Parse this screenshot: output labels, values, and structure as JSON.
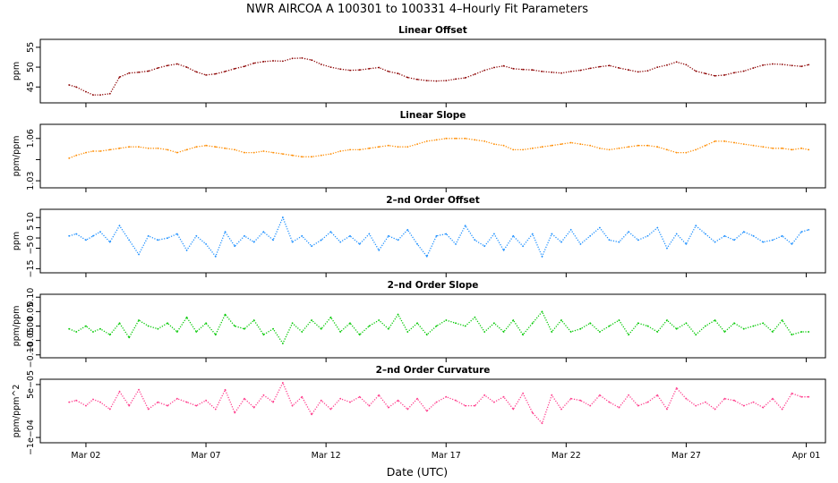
{
  "figure": {
    "title": "NWR   AIRCOA A   100301 to 100331   4–Hourly Fit Parameters",
    "xlabel": "Date (UTC)",
    "xticks": [
      "Mar 02",
      "Mar 07",
      "Mar 12",
      "Mar 17",
      "Mar 22",
      "Mar 27",
      "Apr 01"
    ]
  },
  "chart_data": [
    {
      "type": "line",
      "title": "Linear Offset",
      "ylabel": "ppm",
      "ylim": [
        41,
        57
      ],
      "yticks": [
        45,
        50,
        55
      ],
      "ytick_labels": [
        "45",
        "50",
        "55"
      ],
      "color": "#8b0000",
      "x_unit": "day of March (UTC)",
      "xlim": [
        0.1,
        32.8
      ],
      "series": [
        {
          "x": [
            1.3,
            1.6,
            2.0,
            2.3,
            2.6,
            3.0,
            3.4,
            3.8,
            4.2,
            4.6,
            5.0,
            5.4,
            5.8,
            6.2,
            6.6,
            7.0,
            7.4,
            7.8,
            8.2,
            8.6,
            9.0,
            9.4,
            9.8,
            10.2,
            10.6,
            11.0,
            11.4,
            11.8,
            12.2,
            12.6,
            13.0,
            13.4,
            13.8,
            14.2,
            14.6,
            15.0,
            15.4,
            15.8,
            16.2,
            16.6,
            17.0,
            17.4,
            17.8,
            18.2,
            18.6,
            19.0,
            19.4,
            19.8,
            20.2,
            20.6,
            21.0,
            21.4,
            21.8,
            22.2,
            22.6,
            23.0,
            23.4,
            23.8,
            24.2,
            24.6,
            25.0,
            25.4,
            25.8,
            26.2,
            26.6,
            27.0,
            27.4,
            27.8,
            28.2,
            28.6,
            29.0,
            29.4,
            29.8,
            30.2,
            30.6,
            31.0,
            31.4,
            31.8,
            32.1
          ],
          "values": [
            45.5,
            45.0,
            43.8,
            43.0,
            43.0,
            43.3,
            47.5,
            48.5,
            48.7,
            49.0,
            49.8,
            50.4,
            50.8,
            50.0,
            48.8,
            48.0,
            48.3,
            48.9,
            49.6,
            50.2,
            51.0,
            51.4,
            51.6,
            51.5,
            52.2,
            52.3,
            51.8,
            50.7,
            50.0,
            49.5,
            49.2,
            49.3,
            49.6,
            49.9,
            48.9,
            48.4,
            47.4,
            46.9,
            46.6,
            46.5,
            46.6,
            47.0,
            47.3,
            48.2,
            49.2,
            49.9,
            50.3,
            49.6,
            49.4,
            49.3,
            48.9,
            48.7,
            48.5,
            48.9,
            49.2,
            49.7,
            50.1,
            50.4,
            49.8,
            49.3,
            48.8,
            49.1,
            50.0,
            50.5,
            51.3,
            50.6,
            49.0,
            48.4,
            47.8,
            48.0,
            48.6,
            49.0,
            49.8,
            50.5,
            50.8,
            50.7,
            50.4,
            50.2,
            50.6
          ]
        }
      ]
    },
    {
      "type": "line",
      "title": "Linear Slope",
      "ylabel": "ppm/ppm",
      "ylim": [
        1.025,
        1.07
      ],
      "yticks": [
        1.03,
        1.045,
        1.06
      ],
      "ytick_labels": [
        "1.03",
        "",
        "1.06"
      ],
      "color": "#ff8c00",
      "x_unit": "day of March (UTC)",
      "xlim": [
        0.1,
        32.8
      ],
      "series": [
        {
          "x": [
            1.3,
            1.6,
            2.0,
            2.3,
            2.6,
            3.0,
            3.4,
            3.8,
            4.2,
            4.6,
            5.0,
            5.4,
            5.8,
            6.2,
            6.6,
            7.0,
            7.4,
            7.8,
            8.2,
            8.6,
            9.0,
            9.4,
            9.8,
            10.2,
            10.6,
            11.0,
            11.4,
            11.8,
            12.2,
            12.6,
            13.0,
            13.4,
            13.8,
            14.2,
            14.6,
            15.0,
            15.4,
            15.8,
            16.2,
            16.6,
            17.0,
            17.4,
            17.8,
            18.2,
            18.6,
            19.0,
            19.4,
            19.8,
            20.2,
            20.6,
            21.0,
            21.4,
            21.8,
            22.2,
            22.6,
            23.0,
            23.4,
            23.8,
            24.2,
            24.6,
            25.0,
            25.4,
            25.8,
            26.2,
            26.6,
            27.0,
            27.4,
            27.8,
            28.2,
            28.6,
            29.0,
            29.4,
            29.8,
            30.2,
            30.6,
            31.0,
            31.4,
            31.8,
            32.1
          ],
          "values": [
            1.046,
            1.048,
            1.05,
            1.051,
            1.051,
            1.052,
            1.053,
            1.054,
            1.054,
            1.053,
            1.053,
            1.052,
            1.05,
            1.052,
            1.054,
            1.055,
            1.054,
            1.053,
            1.052,
            1.05,
            1.05,
            1.051,
            1.05,
            1.049,
            1.048,
            1.047,
            1.047,
            1.048,
            1.049,
            1.051,
            1.052,
            1.052,
            1.053,
            1.054,
            1.055,
            1.054,
            1.054,
            1.056,
            1.058,
            1.059,
            1.06,
            1.06,
            1.06,
            1.059,
            1.058,
            1.056,
            1.055,
            1.052,
            1.052,
            1.053,
            1.054,
            1.055,
            1.056,
            1.057,
            1.056,
            1.055,
            1.053,
            1.052,
            1.053,
            1.054,
            1.055,
            1.055,
            1.054,
            1.052,
            1.05,
            1.05,
            1.052,
            1.055,
            1.058,
            1.058,
            1.057,
            1.056,
            1.055,
            1.054,
            1.053,
            1.053,
            1.052,
            1.053,
            1.052
          ]
        }
      ]
    },
    {
      "type": "line",
      "title": "2–nd Order Offset",
      "ylabel": "ppm",
      "ylim": [
        -17,
        14
      ],
      "yticks": [
        -15,
        -5,
        0,
        5,
        10
      ],
      "ytick_labels": [
        "−15",
        "−5",
        "0",
        "5",
        "10"
      ],
      "color": "#1e90ff",
      "x_unit": "day of March (UTC)",
      "xlim": [
        0.1,
        32.8
      ],
      "series": [
        {
          "x": [
            1.3,
            1.6,
            2.0,
            2.3,
            2.6,
            3.0,
            3.4,
            3.8,
            4.2,
            4.6,
            5.0,
            5.4,
            5.8,
            6.2,
            6.6,
            7.0,
            7.4,
            7.8,
            8.2,
            8.6,
            9.0,
            9.4,
            9.8,
            10.2,
            10.6,
            11.0,
            11.4,
            11.8,
            12.2,
            12.6,
            13.0,
            13.4,
            13.8,
            14.2,
            14.6,
            15.0,
            15.4,
            15.8,
            16.2,
            16.6,
            17.0,
            17.4,
            17.8,
            18.2,
            18.6,
            19.0,
            19.4,
            19.8,
            20.2,
            20.6,
            21.0,
            21.4,
            21.8,
            22.2,
            22.6,
            23.0,
            23.4,
            23.8,
            24.2,
            24.6,
            25.0,
            25.4,
            25.8,
            26.2,
            26.6,
            27.0,
            27.4,
            27.8,
            28.2,
            28.6,
            29.0,
            29.4,
            29.8,
            30.2,
            30.6,
            31.0,
            31.4,
            31.8,
            32.1
          ],
          "values": [
            1,
            2,
            -1,
            1,
            3,
            -2,
            6,
            -1,
            -8,
            1,
            -1,
            0,
            2,
            -6,
            1,
            -3,
            -9,
            3,
            -4,
            1,
            -2,
            3,
            -1,
            10,
            -2,
            1,
            -4,
            -1,
            3,
            -2,
            1,
            -3,
            2,
            -6,
            1,
            -1,
            4,
            -3,
            -9,
            1,
            2,
            -3,
            6,
            -1,
            -4,
            2,
            -6,
            1,
            -4,
            2,
            -9,
            2,
            -2,
            4,
            -3,
            1,
            5,
            -1,
            -2,
            3,
            -1,
            1,
            5,
            -5,
            2,
            -3,
            6,
            2,
            -2,
            1,
            -1,
            3,
            1,
            -2,
            -1,
            1,
            -3,
            3,
            4
          ]
        }
      ]
    },
    {
      "type": "line",
      "title": "2–nd Order Slope",
      "ylabel": "ppm/ppm",
      "ylim": [
        -0.11,
        0.11
      ],
      "yticks": [
        -0.1,
        -0.05,
        0.0,
        0.05,
        0.1
      ],
      "ytick_labels": [
        "−0.10",
        "−0.05",
        "0.00",
        "0.05",
        "0.10"
      ],
      "color": "#00c800",
      "x_unit": "day of March (UTC)",
      "xlim": [
        0.1,
        32.8
      ],
      "series": [
        {
          "x": [
            1.3,
            1.6,
            2.0,
            2.3,
            2.6,
            3.0,
            3.4,
            3.8,
            4.2,
            4.6,
            5.0,
            5.4,
            5.8,
            6.2,
            6.6,
            7.0,
            7.4,
            7.8,
            8.2,
            8.6,
            9.0,
            9.4,
            9.8,
            10.2,
            10.6,
            11.0,
            11.4,
            11.8,
            12.2,
            12.6,
            13.0,
            13.4,
            13.8,
            14.2,
            14.6,
            15.0,
            15.4,
            15.8,
            16.2,
            16.6,
            17.0,
            17.4,
            17.8,
            18.2,
            18.6,
            19.0,
            19.4,
            19.8,
            20.2,
            20.6,
            21.0,
            21.4,
            21.8,
            22.2,
            22.6,
            23.0,
            23.4,
            23.8,
            24.2,
            24.6,
            25.0,
            25.4,
            25.8,
            26.2,
            26.6,
            27.0,
            27.4,
            27.8,
            28.2,
            28.6,
            29.0,
            29.4,
            29.8,
            30.2,
            30.6,
            31.0,
            31.4,
            31.8,
            32.1
          ],
          "values": [
            -0.01,
            -0.02,
            0.0,
            -0.02,
            -0.01,
            -0.03,
            0.01,
            -0.04,
            0.02,
            0.0,
            -0.01,
            0.01,
            -0.02,
            0.03,
            -0.02,
            0.01,
            -0.03,
            0.04,
            0.0,
            -0.01,
            0.02,
            -0.03,
            -0.01,
            -0.06,
            0.01,
            -0.02,
            0.02,
            -0.01,
            0.03,
            -0.02,
            0.01,
            -0.03,
            0.0,
            0.02,
            -0.01,
            0.04,
            -0.02,
            0.01,
            -0.03,
            0.0,
            0.02,
            0.01,
            0.0,
            0.03,
            -0.02,
            0.01,
            -0.02,
            0.02,
            -0.03,
            0.01,
            0.05,
            -0.02,
            0.02,
            -0.02,
            -0.01,
            0.01,
            -0.02,
            0.0,
            0.02,
            -0.03,
            0.01,
            0.0,
            -0.02,
            0.02,
            -0.01,
            0.01,
            -0.03,
            0.0,
            0.02,
            -0.02,
            0.01,
            -0.01,
            0.0,
            0.01,
            -0.02,
            0.02,
            -0.03,
            -0.02,
            -0.02
          ]
        }
      ]
    },
    {
      "type": "line",
      "title": "2–nd Order Curvature",
      "ylabel": "ppm/ppm^2",
      "ylim": [
        -0.000115,
        6.5e-05
      ],
      "yticks": [
        -0.0001,
        5e-05
      ],
      "ytick_labels": [
        "−1e−04",
        "5e−05"
      ],
      "color": "#ff3c8c",
      "x_unit": "day of March (UTC)",
      "xlim": [
        0.1,
        32.8
      ],
      "series": [
        {
          "x": [
            1.3,
            1.6,
            2.0,
            2.3,
            2.6,
            3.0,
            3.4,
            3.8,
            4.2,
            4.6,
            5.0,
            5.4,
            5.8,
            6.2,
            6.6,
            7.0,
            7.4,
            7.8,
            8.2,
            8.6,
            9.0,
            9.4,
            9.8,
            10.2,
            10.6,
            11.0,
            11.4,
            11.8,
            12.2,
            12.6,
            13.0,
            13.4,
            13.8,
            14.2,
            14.6,
            15.0,
            15.4,
            15.8,
            16.2,
            16.6,
            17.0,
            17.4,
            17.8,
            18.2,
            18.6,
            19.0,
            19.4,
            19.8,
            20.2,
            20.6,
            21.0,
            21.4,
            21.8,
            22.2,
            22.6,
            23.0,
            23.4,
            23.8,
            24.2,
            24.6,
            25.0,
            25.4,
            25.8,
            26.2,
            26.6,
            27.0,
            27.4,
            27.8,
            28.2,
            28.6,
            29.0,
            29.4,
            29.8,
            30.2,
            30.6,
            31.0,
            31.4,
            31.8,
            32.1
          ],
          "values": [
            0.0,
            5e-06,
            -1e-05,
            8e-06,
            0.0,
            -2e-05,
            3e-05,
            -1e-05,
            3.5e-05,
            -2e-05,
            0.0,
            -1e-05,
            1e-05,
            0.0,
            -1e-05,
            5e-06,
            -2e-05,
            3.5e-05,
            -3e-05,
            1e-05,
            -1.5e-05,
            2e-05,
            0.0,
            5.5e-05,
            -1e-05,
            1.5e-05,
            -3.5e-05,
            5e-06,
            -2e-05,
            1e-05,
            0.0,
            1.5e-05,
            -1e-05,
            2e-05,
            -1.5e-05,
            5e-06,
            -2e-05,
            1e-05,
            -2.5e-05,
            0.0,
            1.5e-05,
            5e-06,
            -1e-05,
            -1e-05,
            2e-05,
            0.0,
            1.5e-05,
            -2e-05,
            2.5e-05,
            -3e-05,
            -6e-05,
            2e-05,
            -2e-05,
            1e-05,
            5e-06,
            -1e-05,
            2e-05,
            0.0,
            -1.5e-05,
            2e-05,
            -1e-05,
            0.0,
            2e-05,
            -2e-05,
            4e-05,
            1e-05,
            -1e-05,
            0.0,
            -2e-05,
            1e-05,
            5e-06,
            -1e-05,
            0.0,
            -1.5e-05,
            1e-05,
            -2e-05,
            2.5e-05,
            1.5e-05,
            1.5e-05
          ]
        }
      ]
    }
  ]
}
